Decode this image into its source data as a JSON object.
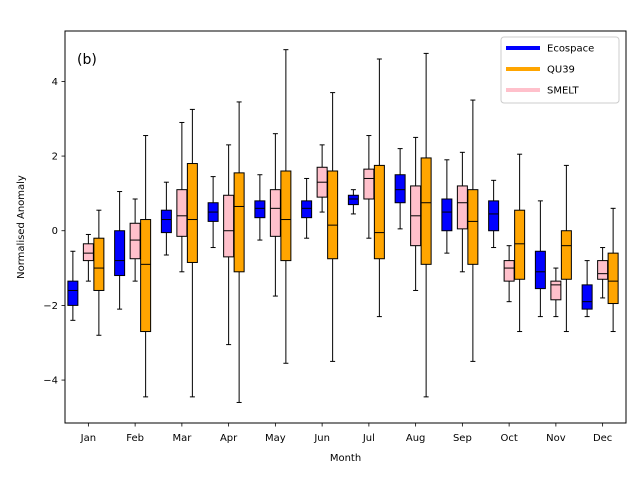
{
  "chart_data": {
    "type": "box",
    "panel_label": "(b)",
    "xlabel": "Month",
    "ylabel": "Normalised Anomaly",
    "ylim": [
      -5.15,
      5.35
    ],
    "yticks": [
      -4,
      -2,
      0,
      2,
      4
    ],
    "grid": false,
    "legend_position": "top-right",
    "categories": [
      "Jan",
      "Feb",
      "Mar",
      "Apr",
      "May",
      "Jun",
      "Jul",
      "Aug",
      "Sep",
      "Oct",
      "Nov",
      "Dec"
    ],
    "series": [
      {
        "name": "Ecospace",
        "color": "#0000ff",
        "boxes": [
          {
            "whislo": -2.4,
            "q1": -2.0,
            "med": -1.6,
            "q3": -1.35,
            "whishi": -0.55
          },
          {
            "whislo": -2.1,
            "q1": -1.2,
            "med": -0.8,
            "q3": 0.0,
            "whishi": 1.05
          },
          {
            "whislo": -0.65,
            "q1": -0.05,
            "med": 0.3,
            "q3": 0.55,
            "whishi": 1.3
          },
          {
            "whislo": -0.45,
            "q1": 0.25,
            "med": 0.5,
            "q3": 0.75,
            "whishi": 1.45
          },
          {
            "whislo": -0.25,
            "q1": 0.35,
            "med": 0.6,
            "q3": 0.8,
            "whishi": 1.5
          },
          {
            "whislo": -0.2,
            "q1": 0.35,
            "med": 0.6,
            "q3": 0.8,
            "whishi": 1.4
          },
          {
            "whislo": 0.45,
            "q1": 0.7,
            "med": 0.85,
            "q3": 0.95,
            "whishi": 1.1
          },
          {
            "whislo": 0.05,
            "q1": 0.75,
            "med": 1.1,
            "q3": 1.5,
            "whishi": 2.2
          },
          {
            "whislo": -0.6,
            "q1": 0.0,
            "med": 0.5,
            "q3": 0.85,
            "whishi": 1.9
          },
          {
            "whislo": -0.45,
            "q1": 0.0,
            "med": 0.45,
            "q3": 0.8,
            "whishi": 1.35
          },
          {
            "whislo": -2.3,
            "q1": -1.55,
            "med": -1.1,
            "q3": -0.55,
            "whishi": 0.8
          },
          {
            "whislo": -2.3,
            "q1": -2.1,
            "med": -1.9,
            "q3": -1.45,
            "whishi": -0.8
          }
        ]
      },
      {
        "name": "SMELT",
        "color": "#ffc0cb",
        "boxes": [
          {
            "whislo": -1.35,
            "q1": -0.8,
            "med": -0.6,
            "q3": -0.35,
            "whishi": -0.1
          },
          {
            "whislo": -1.35,
            "q1": -0.75,
            "med": -0.25,
            "q3": 0.2,
            "whishi": 0.85
          },
          {
            "whislo": -1.1,
            "q1": -0.15,
            "med": 0.4,
            "q3": 1.1,
            "whishi": 2.9
          },
          {
            "whislo": -3.05,
            "q1": -0.7,
            "med": 0.0,
            "q3": 0.95,
            "whishi": 2.3
          },
          {
            "whislo": -1.75,
            "q1": -0.15,
            "med": 0.6,
            "q3": 1.1,
            "whishi": 2.6
          },
          {
            "whislo": 0.5,
            "q1": 0.9,
            "med": 1.3,
            "q3": 1.7,
            "whishi": 2.3
          },
          {
            "whislo": -0.2,
            "q1": 0.85,
            "med": 1.4,
            "q3": 1.65,
            "whishi": 2.55
          },
          {
            "whislo": -1.6,
            "q1": -0.4,
            "med": 0.4,
            "q3": 1.2,
            "whishi": 2.5
          },
          {
            "whislo": -1.1,
            "q1": 0.05,
            "med": 0.75,
            "q3": 1.2,
            "whishi": 2.1
          },
          {
            "whislo": -1.9,
            "q1": -1.35,
            "med": -1.0,
            "q3": -0.8,
            "whishi": -0.4
          },
          {
            "whislo": -2.3,
            "q1": -1.85,
            "med": -1.45,
            "q3": -1.35,
            "whishi": -1.0
          },
          {
            "whislo": -1.8,
            "q1": -1.3,
            "med": -1.15,
            "q3": -0.8,
            "whishi": -0.45
          }
        ]
      },
      {
        "name": "QU39",
        "color": "#ffa500",
        "boxes": [
          {
            "whislo": -2.8,
            "q1": -1.6,
            "med": -1.0,
            "q3": -0.2,
            "whishi": 0.55
          },
          {
            "whislo": -4.45,
            "q1": -2.7,
            "med": -0.9,
            "q3": 0.3,
            "whishi": 2.55
          },
          {
            "whislo": -4.45,
            "q1": -0.85,
            "med": 0.3,
            "q3": 1.8,
            "whishi": 3.25
          },
          {
            "whislo": -4.6,
            "q1": -1.1,
            "med": 0.65,
            "q3": 1.55,
            "whishi": 3.45
          },
          {
            "whislo": -3.55,
            "q1": -0.8,
            "med": 0.3,
            "q3": 1.6,
            "whishi": 4.85
          },
          {
            "whislo": -3.5,
            "q1": -0.75,
            "med": 0.15,
            "q3": 1.6,
            "whishi": 3.7
          },
          {
            "whislo": -2.3,
            "q1": -0.75,
            "med": -0.05,
            "q3": 1.75,
            "whishi": 4.6
          },
          {
            "whislo": -4.45,
            "q1": -0.9,
            "med": 0.75,
            "q3": 1.95,
            "whishi": 4.75
          },
          {
            "whislo": -3.5,
            "q1": -0.9,
            "med": 0.25,
            "q3": 1.1,
            "whishi": 3.5
          },
          {
            "whislo": -2.7,
            "q1": -1.3,
            "med": -0.35,
            "q3": 0.55,
            "whishi": 2.05
          },
          {
            "whislo": -2.7,
            "q1": -1.3,
            "med": -0.4,
            "q3": 0.0,
            "whishi": 1.75
          },
          {
            "whislo": -2.7,
            "q1": -1.95,
            "med": -1.35,
            "q3": -0.6,
            "whishi": 0.6
          }
        ]
      }
    ],
    "legend": [
      {
        "label": "Ecospace",
        "color": "#0000ff"
      },
      {
        "label": "QU39",
        "color": "#ffa500"
      },
      {
        "label": "SMELT",
        "color": "#ffc0cb"
      }
    ]
  }
}
